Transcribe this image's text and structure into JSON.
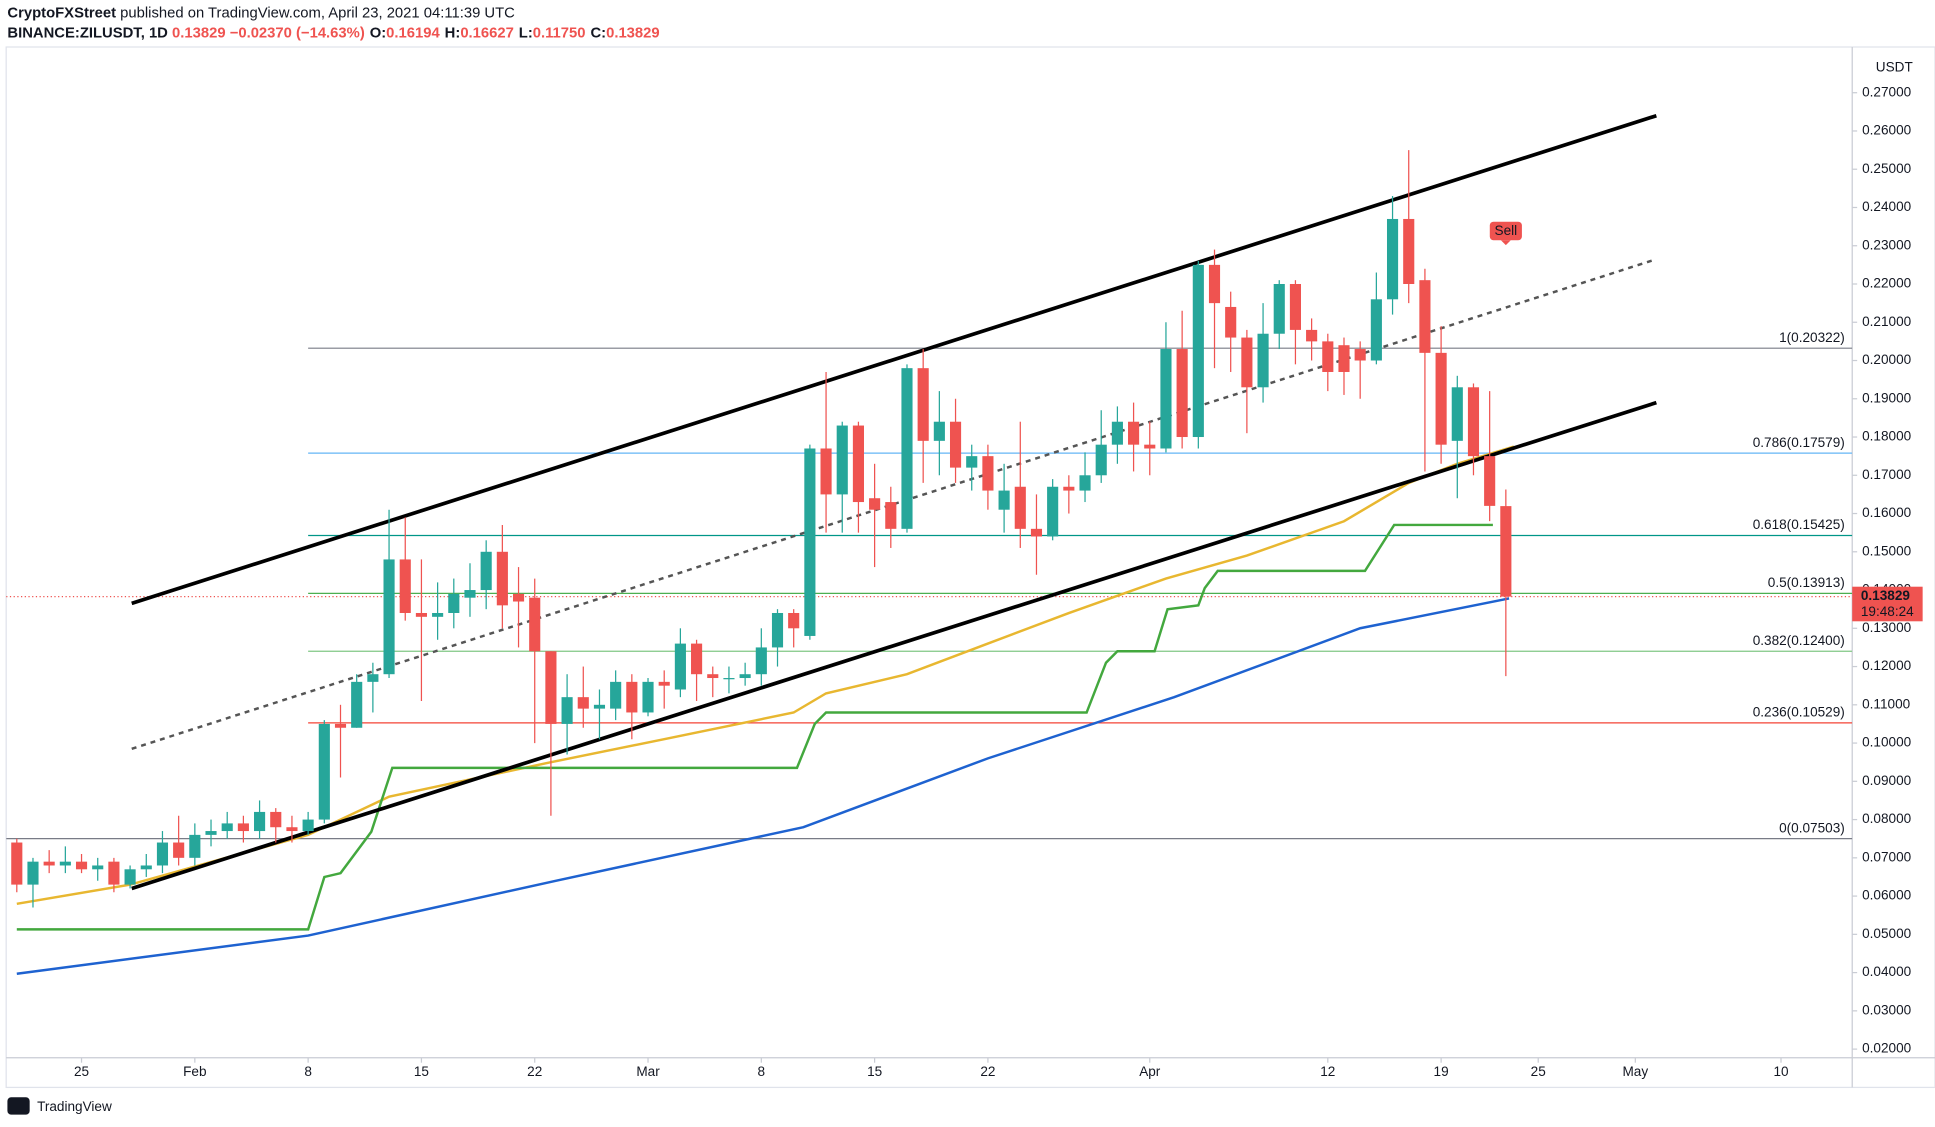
{
  "header": {
    "author": "CryptoFXStreet",
    "published": " published on TradingView.com, April 23, 2021 04:11:39 UTC",
    "symbol": "BINANCE:ZILUSDT, 1D",
    "last": "0.13829",
    "change": "−0.02370 (−14.63%)",
    "ohlc": [
      {
        "label": "O:",
        "value": "0.16194"
      },
      {
        "label": "H:",
        "value": "0.16627"
      },
      {
        "label": "L:",
        "value": "0.11750"
      },
      {
        "label": "C:",
        "value": "0.13829"
      }
    ]
  },
  "footer": {
    "brand": "TradingView"
  },
  "chart_data": {
    "type": "candlestick",
    "currency": "USDT",
    "up_color": "#26a69a",
    "down_color": "#ef5350",
    "x": [
      0,
      1,
      2,
      3,
      4,
      5,
      6,
      7,
      8,
      9,
      10,
      11,
      12,
      13,
      14,
      15,
      16,
      17,
      18,
      19,
      20,
      21,
      22,
      23,
      24,
      25,
      26,
      27,
      28,
      29,
      30,
      31,
      32,
      33,
      34,
      35,
      36,
      37,
      38,
      39,
      40,
      41,
      42,
      43,
      44,
      45,
      46,
      47,
      48,
      49,
      50,
      51,
      52,
      53,
      54,
      55,
      56,
      57,
      58,
      59,
      60,
      61,
      62,
      63,
      64,
      65,
      66,
      67,
      68,
      69,
      70,
      71,
      72,
      73,
      74,
      75,
      76,
      77,
      78,
      79,
      80,
      81,
      82,
      83,
      84,
      85,
      86,
      87,
      88,
      89,
      90,
      91,
      92
    ],
    "series": [
      {
        "open": [
          0.074,
          0.063,
          0.069,
          0.068,
          0.069,
          0.067,
          0.069,
          0.063,
          0.067,
          0.068,
          0.074,
          0.07,
          0.076,
          0.077,
          0.079,
          0.077,
          0.082,
          0.078,
          0.077,
          0.08,
          0.105,
          0.104,
          0.116,
          0.118,
          0.148,
          0.134,
          0.133,
          0.134,
          0.138,
          0.14,
          0.15,
          0.139,
          0.138,
          0.124,
          0.105,
          0.112,
          0.109,
          0.109,
          0.116,
          0.108,
          0.116,
          0.114,
          0.126,
          0.118,
          0.117,
          0.117,
          0.118,
          0.125,
          0.134,
          0.128,
          0.177,
          0.165,
          0.183,
          0.164,
          0.163,
          0.156,
          0.198,
          0.179,
          0.184,
          0.172,
          0.175,
          0.161,
          0.167,
          0.156,
          0.154,
          0.167,
          0.166,
          0.17,
          0.178,
          0.184,
          0.178,
          0.177,
          0.203,
          0.18,
          0.225,
          0.214,
          0.206,
          0.193,
          0.207,
          0.22,
          0.208,
          0.205,
          0.204,
          0.203,
          0.2,
          0.216,
          0.237,
          0.221,
          0.202,
          0.179,
          0.193,
          0.175,
          0.16194
        ],
        "high": [
          0.075,
          0.07,
          0.072,
          0.073,
          0.071,
          0.07,
          0.07,
          0.068,
          0.071,
          0.077,
          0.081,
          0.079,
          0.08,
          0.082,
          0.081,
          0.085,
          0.083,
          0.081,
          0.082,
          0.106,
          0.11,
          0.118,
          0.121,
          0.161,
          0.159,
          0.148,
          0.142,
          0.143,
          0.147,
          0.153,
          0.157,
          0.146,
          0.143,
          0.124,
          0.118,
          0.12,
          0.114,
          0.119,
          0.118,
          0.117,
          0.119,
          0.13,
          0.127,
          0.12,
          0.12,
          0.121,
          0.13,
          0.135,
          0.135,
          0.178,
          0.197,
          0.184,
          0.184,
          0.173,
          0.167,
          0.199,
          0.203,
          0.192,
          0.19,
          0.178,
          0.178,
          0.173,
          0.184,
          0.165,
          0.169,
          0.17,
          0.176,
          0.187,
          0.188,
          0.189,
          0.184,
          0.21,
          0.213,
          0.226,
          0.229,
          0.218,
          0.208,
          0.215,
          0.221,
          0.221,
          0.211,
          0.207,
          0.206,
          0.205,
          0.223,
          0.243,
          0.255,
          0.224,
          0.209,
          0.196,
          0.194,
          0.192,
          0.16627
        ],
        "low": [
          0.061,
          0.057,
          0.066,
          0.066,
          0.066,
          0.064,
          0.061,
          0.062,
          0.065,
          0.066,
          0.068,
          0.068,
          0.073,
          0.075,
          0.074,
          0.075,
          0.074,
          0.074,
          0.076,
          0.079,
          0.091,
          0.104,
          0.108,
          0.117,
          0.132,
          0.111,
          0.127,
          0.13,
          0.133,
          0.135,
          0.13,
          0.125,
          0.1,
          0.081,
          0.097,
          0.104,
          0.101,
          0.106,
          0.101,
          0.107,
          0.109,
          0.112,
          0.111,
          0.112,
          0.113,
          0.115,
          0.115,
          0.12,
          0.125,
          0.127,
          0.155,
          0.155,
          0.155,
          0.146,
          0.151,
          0.155,
          0.168,
          0.17,
          0.168,
          0.166,
          0.161,
          0.155,
          0.151,
          0.144,
          0.153,
          0.16,
          0.163,
          0.168,
          0.173,
          0.171,
          0.17,
          0.176,
          0.177,
          0.177,
          0.198,
          0.197,
          0.181,
          0.189,
          0.203,
          0.199,
          0.2,
          0.192,
          0.191,
          0.19,
          0.199,
          0.212,
          0.215,
          0.171,
          0.173,
          0.164,
          0.17,
          0.158,
          0.1175
        ],
        "close": [
          0.063,
          0.069,
          0.068,
          0.069,
          0.067,
          0.068,
          0.063,
          0.067,
          0.068,
          0.074,
          0.07,
          0.076,
          0.077,
          0.079,
          0.077,
          0.082,
          0.078,
          0.077,
          0.08,
          0.105,
          0.104,
          0.116,
          0.118,
          0.148,
          0.134,
          0.133,
          0.134,
          0.139,
          0.14,
          0.15,
          0.136,
          0.137,
          0.124,
          0.105,
          0.112,
          0.109,
          0.11,
          0.116,
          0.108,
          0.116,
          0.115,
          0.126,
          0.118,
          0.117,
          0.117,
          0.118,
          0.125,
          0.134,
          0.13,
          0.177,
          0.165,
          0.183,
          0.163,
          0.161,
          0.156,
          0.198,
          0.179,
          0.184,
          0.172,
          0.175,
          0.166,
          0.166,
          0.156,
          0.154,
          0.167,
          0.166,
          0.17,
          0.178,
          0.184,
          0.178,
          0.177,
          0.203,
          0.18,
          0.225,
          0.215,
          0.206,
          0.193,
          0.207,
          0.22,
          0.208,
          0.205,
          0.197,
          0.197,
          0.2,
          0.216,
          0.237,
          0.22,
          0.202,
          0.178,
          0.193,
          0.175,
          0.162,
          0.13829
        ]
      }
    ],
    "lines": [
      {
        "color": "#1e62d0",
        "x": [
          0,
          18,
          33.3,
          48.6,
          60,
          71.5,
          83,
          92.2
        ],
        "values": [
          0.0397,
          0.0497,
          0.064,
          0.078,
          0.096,
          0.112,
          0.13,
          0.1378
        ]
      },
      {
        "color": "#e8b730",
        "x": [
          0,
          7,
          18,
          23,
          33,
          40,
          48,
          50,
          55,
          60,
          65,
          71,
          76,
          82,
          86,
          89,
          92.5
        ],
        "values": [
          0.058,
          0.063,
          0.076,
          0.086,
          0.095,
          0.101,
          0.108,
          0.113,
          0.118,
          0.126,
          0.134,
          0.143,
          0.149,
          0.158,
          0.168,
          0.173,
          0.1775
        ]
      },
      {
        "color": "#43a83e",
        "x": [
          0,
          18,
          19,
          20,
          21.9,
          23.2,
          48.2,
          49.3,
          50,
          66.1,
          67.3,
          68,
          70.3,
          71.1,
          73,
          73.4,
          74.2,
          83.3,
          85.1,
          91.2
        ],
        "values": [
          0.0513,
          0.0513,
          0.065,
          0.066,
          0.0768,
          0.0935,
          0.0935,
          0.105,
          0.108,
          0.108,
          0.121,
          0.124,
          0.124,
          0.135,
          0.136,
          0.1405,
          0.145,
          0.145,
          0.157,
          0.157
        ]
      },
      {
        "color": "#000000",
        "width": 3,
        "x": [
          7.1,
          101.3
        ],
        "values": [
          0.1365,
          0.264
        ]
      },
      {
        "color": "#000000",
        "width": 3,
        "x": [
          7.1,
          101.3
        ],
        "values": [
          0.062,
          0.189
        ]
      },
      {
        "color": "#555555",
        "dashed": true,
        "x": [
          7.1,
          101.3
        ],
        "values": [
          0.0985,
          0.2265
        ]
      }
    ],
    "fib_start": 18,
    "fib_levels": [
      {
        "value": 0.20322,
        "label": "1(0.20322)",
        "color": "#787b86"
      },
      {
        "value": 0.17579,
        "label": "0.786(0.17579)",
        "color": "#64b5f6"
      },
      {
        "value": 0.15425,
        "label": "0.618(0.15425)",
        "color": "#009688"
      },
      {
        "value": 0.13913,
        "label": "0.5(0.13913)",
        "color": "#4caf50"
      },
      {
        "value": 0.124,
        "label": "0.382(0.12400)",
        "color": "#81c784"
      },
      {
        "value": 0.10529,
        "label": "0.236(0.10529)",
        "color": "#f44336"
      },
      {
        "value": 0.07503,
        "label": "0(0.07503)",
        "color": "#787b86"
      }
    ],
    "last_price": {
      "value": 0.13829,
      "label": "0.13829",
      "countdown": "19:48:24"
    },
    "sell_signal": {
      "x": 92,
      "value": 0.2337,
      "label": "Sell"
    },
    "xlim": [
      -0.656,
      113.4
    ],
    "ylim": [
      0.01774,
      0.28195
    ],
    "xticks": [
      {
        "value": 4,
        "label": "25"
      },
      {
        "value": 11,
        "label": "Feb"
      },
      {
        "value": 18,
        "label": "8"
      },
      {
        "value": 25,
        "label": "15"
      },
      {
        "value": 32,
        "label": "22"
      },
      {
        "value": 39,
        "label": "Mar"
      },
      {
        "value": 46,
        "label": "8"
      },
      {
        "value": 53,
        "label": "15"
      },
      {
        "value": 60,
        "label": "22"
      },
      {
        "value": 70,
        "label": "Apr"
      },
      {
        "value": 81,
        "label": "12"
      },
      {
        "value": 88,
        "label": "19"
      },
      {
        "value": 94,
        "label": "25"
      },
      {
        "value": 100,
        "label": "May"
      },
      {
        "value": 109,
        "label": "10"
      }
    ],
    "yticks": [
      {
        "value": 0.02,
        "label": "0.02000"
      },
      {
        "value": 0.03,
        "label": "0.03000"
      },
      {
        "value": 0.04,
        "label": "0.04000"
      },
      {
        "value": 0.05,
        "label": "0.05000"
      },
      {
        "value": 0.06,
        "label": "0.06000"
      },
      {
        "value": 0.07,
        "label": "0.07000"
      },
      {
        "value": 0.08,
        "label": "0.08000"
      },
      {
        "value": 0.09,
        "label": "0.09000"
      },
      {
        "value": 0.1,
        "label": "0.10000"
      },
      {
        "value": 0.11,
        "label": "0.11000"
      },
      {
        "value": 0.12,
        "label": "0.12000"
      },
      {
        "value": 0.13,
        "label": "0.13000"
      },
      {
        "value": 0.14,
        "label": "0.14000"
      },
      {
        "value": 0.15,
        "label": "0.15000"
      },
      {
        "value": 0.16,
        "label": "0.16000"
      },
      {
        "value": 0.17,
        "label": "0.17000"
      },
      {
        "value": 0.18,
        "label": "0.18000"
      },
      {
        "value": 0.19,
        "label": "0.19000"
      },
      {
        "value": 0.2,
        "label": "0.20000"
      },
      {
        "value": 0.21,
        "label": "0.21000"
      },
      {
        "value": 0.22,
        "label": "0.22000"
      },
      {
        "value": 0.23,
        "label": "0.23000"
      },
      {
        "value": 0.24,
        "label": "0.24000"
      },
      {
        "value": 0.25,
        "label": "0.25000"
      },
      {
        "value": 0.26,
        "label": "0.26000"
      },
      {
        "value": 0.27,
        "label": "0.27000"
      }
    ]
  }
}
